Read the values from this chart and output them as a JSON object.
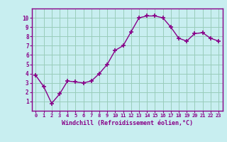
{
  "x": [
    0,
    1,
    2,
    3,
    4,
    5,
    6,
    7,
    8,
    9,
    10,
    11,
    12,
    13,
    14,
    15,
    16,
    17,
    18,
    19,
    20,
    21,
    22,
    23
  ],
  "y": [
    3.8,
    2.6,
    0.8,
    1.8,
    3.2,
    3.1,
    3.0,
    3.2,
    4.0,
    5.0,
    6.5,
    7.0,
    8.5,
    10.0,
    10.2,
    10.2,
    10.0,
    9.0,
    7.8,
    7.5,
    8.3,
    8.4,
    7.8,
    7.5
  ],
  "line_color": "#880088",
  "marker": "+",
  "bg_color": "#c8eef0",
  "grid_color": "#99ccbb",
  "xlabel": "Windchill (Refroidissement éolien,°C)",
  "xlabel_color": "#880088",
  "tick_color": "#880088",
  "ylim": [
    0,
    11
  ],
  "xlim": [
    -0.5,
    23.5
  ],
  "yticks": [
    1,
    2,
    3,
    4,
    5,
    6,
    7,
    8,
    9,
    10
  ],
  "xticks": [
    0,
    1,
    2,
    3,
    4,
    5,
    6,
    7,
    8,
    9,
    10,
    11,
    12,
    13,
    14,
    15,
    16,
    17,
    18,
    19,
    20,
    21,
    22,
    23
  ],
  "spine_color": "#880088",
  "fig_bg": "#c8eef0",
  "outer_bg": "#c8eef0"
}
